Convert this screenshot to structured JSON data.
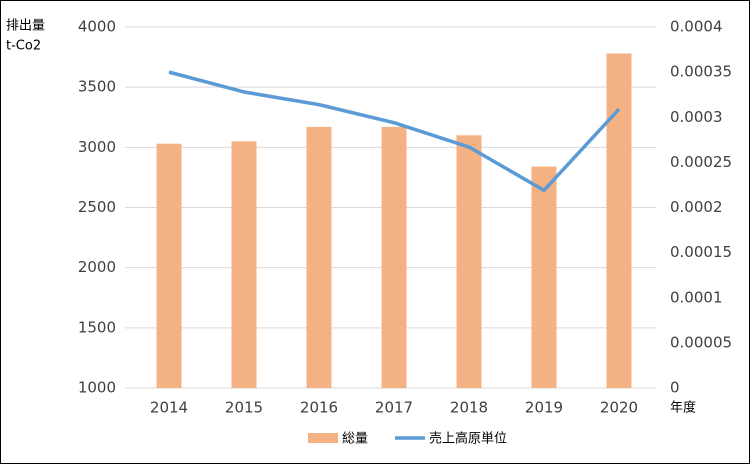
{
  "chart_data": {
    "type": "bar",
    "ylabel": [
      "排出量",
      "t-Co2"
    ],
    "xlabel": "年度",
    "categories": [
      "2014",
      "2015",
      "2016",
      "2017",
      "2018",
      "2019",
      "2020"
    ],
    "series": [
      {
        "name": "総量",
        "type": "bar",
        "color": "#f4b183",
        "values": [
          3030,
          3050,
          3170,
          3170,
          3100,
          2840,
          3780
        ]
      },
      {
        "name": "売上高原単位",
        "type": "line",
        "axis": "y2",
        "color": "#5b9bd5",
        "values": [
          0.00035,
          0.000328,
          0.000314,
          0.000294,
          0.000267,
          0.000219,
          0.000309
        ]
      }
    ],
    "ylim": [
      1000,
      4000
    ],
    "yticks": [
      1000,
      1500,
      2000,
      2500,
      3000,
      3500,
      4000
    ],
    "y2lim": [
      0,
      0.0004
    ],
    "y2ticks": [
      0,
      5e-05,
      0.0001,
      0.00015,
      0.0002,
      0.00025,
      0.0003,
      0.00035,
      0.0004
    ],
    "grid": true,
    "legend": "bottom"
  }
}
